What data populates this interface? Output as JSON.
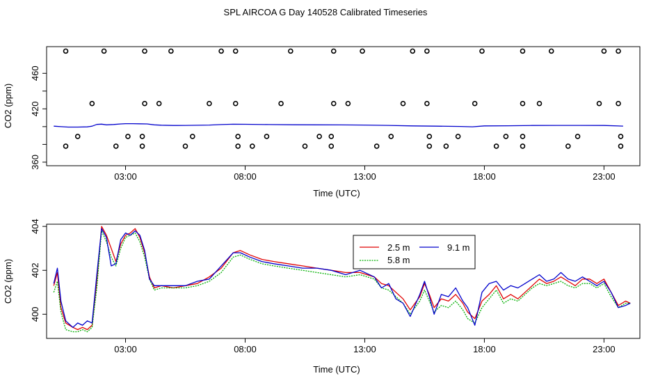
{
  "title": "SPL AIRCOA G  Day 140528  Calibrated Timeseries",
  "chart_data": [
    {
      "type": "line",
      "xlabel": "Time (UTC)",
      "ylabel": "CO2 (ppm)",
      "x_ticks": [
        3,
        8,
        13,
        18,
        23
      ],
      "x_tick_labels": [
        "03:00",
        "08:00",
        "13:00",
        "18:00",
        "23:00"
      ],
      "y_ticks": [
        360,
        380,
        400,
        420,
        440,
        460
      ],
      "y_tick_labels": [
        "360",
        "",
        "",
        "420",
        "",
        "460"
      ],
      "xlim": [
        -0.3,
        24.5
      ],
      "ylim": [
        356,
        490
      ],
      "grid": false,
      "line_color": "#0000cc",
      "series": [
        {
          "x": [
            0,
            0.3,
            0.6,
            1.0,
            1.4,
            1.6,
            1.8,
            2.0,
            2.2,
            2.5,
            2.8,
            3.0,
            3.3,
            3.6,
            3.9,
            4.2,
            4.5,
            5.0,
            5.5,
            6.0,
            6.5,
            7.0,
            7.5,
            8.0,
            9.0,
            10.0,
            11.0,
            12.0,
            13.0,
            14.0,
            15.0,
            16.0,
            17.0,
            17.5,
            18.0,
            19.0,
            20.0,
            21.0,
            22.0,
            23.0,
            23.8
          ],
          "values": [
            400.5,
            400.0,
            399.5,
            399.5,
            399.7,
            400.5,
            402.5,
            402.8,
            402.0,
            402.4,
            403.0,
            403.3,
            403.3,
            403.2,
            403.0,
            402.0,
            401.6,
            401.3,
            401.4,
            401.5,
            401.8,
            402.3,
            402.7,
            402.6,
            402.3,
            402.1,
            402.0,
            401.9,
            401.8,
            401.4,
            400.8,
            400.5,
            400.2,
            399.8,
            400.8,
            401.0,
            401.3,
            401.4,
            401.4,
            401.3,
            400.6
          ]
        }
      ],
      "outliers_x": [
        0.5,
        2.1,
        3.8,
        4.9,
        7.0,
        7.6,
        9.9,
        11.7,
        12.9,
        15.0,
        15.6,
        17.9,
        19.6,
        20.8,
        23.0,
        23.6,
        1.6,
        3.8,
        4.4,
        6.5,
        7.6,
        9.5,
        11.7,
        12.3,
        14.6,
        15.6,
        17.6,
        19.6,
        20.3,
        22.8,
        23.6,
        1.0,
        3.1,
        3.7,
        5.8,
        7.7,
        8.9,
        11.1,
        11.6,
        14.1,
        15.7,
        16.9,
        18.9,
        19.6,
        21.9,
        23.7,
        0.5,
        2.6,
        3.7,
        5.5,
        7.7,
        8.3,
        10.5,
        11.6,
        13.5,
        15.7,
        16.4,
        18.5,
        19.6,
        21.5,
        23.7
      ],
      "outliers_y": [
        485,
        485,
        485,
        485,
        485,
        485,
        485,
        485,
        485,
        485,
        485,
        485,
        485,
        485,
        485,
        485,
        426,
        426,
        426,
        426,
        426,
        426,
        426,
        426,
        426,
        426,
        426,
        426,
        426,
        426,
        426,
        389,
        389,
        389,
        389,
        389,
        389,
        389,
        389,
        389,
        389,
        389,
        389,
        389,
        389,
        389,
        378,
        378,
        378,
        378,
        378,
        378,
        378,
        378,
        378,
        378,
        378,
        378,
        378,
        378,
        378
      ]
    },
    {
      "type": "line",
      "xlabel": "Time (UTC)",
      "ylabel": "CO2 (ppm)",
      "x_ticks": [
        3,
        8,
        13,
        18,
        23
      ],
      "x_tick_labels": [
        "03:00",
        "08:00",
        "13:00",
        "18:00",
        "23:00"
      ],
      "y_ticks": [
        400,
        402,
        404
      ],
      "y_tick_labels": [
        "400",
        "402",
        "404"
      ],
      "xlim": [
        -0.3,
        24.5
      ],
      "ylim": [
        398.9,
        404.1
      ],
      "grid": false,
      "legend_placement": "top-center",
      "series": [
        {
          "name": "2.5 m",
          "color": "#e00000",
          "x": [
            0,
            0.15,
            0.3,
            0.5,
            0.8,
            1.0,
            1.2,
            1.4,
            1.6,
            1.8,
            2.0,
            2.2,
            2.4,
            2.6,
            2.8,
            3.0,
            3.2,
            3.4,
            3.6,
            3.8,
            4.0,
            4.2,
            4.5,
            5.0,
            5.5,
            6.0,
            6.5,
            7.0,
            7.5,
            7.8,
            8.2,
            8.7,
            9.2,
            9.8,
            10.4,
            11.0,
            11.6,
            12.2,
            12.8,
            13.4,
            13.7,
            14.0,
            14.3,
            14.6,
            14.9,
            15.1,
            15.3,
            15.5,
            15.7,
            15.9,
            16.2,
            16.5,
            16.8,
            17.1,
            17.3,
            17.6,
            17.9,
            18.2,
            18.5,
            18.8,
            19.1,
            19.4,
            19.7,
            20.0,
            20.3,
            20.6,
            20.9,
            21.2,
            21.5,
            21.8,
            22.1,
            22.4,
            22.7,
            23.0,
            23.3,
            23.6,
            23.9,
            24.1
          ],
          "values": [
            401.3,
            401.9,
            400.3,
            399.6,
            399.4,
            399.3,
            399.4,
            399.3,
            399.5,
            401.5,
            404.0,
            403.6,
            403.0,
            402.4,
            403.2,
            403.6,
            403.7,
            403.9,
            403.5,
            402.8,
            401.7,
            401.2,
            401.3,
            401.2,
            401.3,
            401.4,
            401.7,
            402.1,
            402.8,
            402.9,
            402.7,
            402.5,
            402.4,
            402.3,
            402.2,
            402.1,
            402.0,
            401.9,
            401.9,
            401.7,
            401.4,
            401.3,
            401.0,
            400.7,
            400.2,
            400.5,
            400.8,
            401.4,
            400.9,
            400.3,
            400.7,
            400.6,
            400.9,
            400.5,
            400.1,
            399.8,
            400.6,
            400.9,
            401.3,
            400.7,
            400.9,
            400.7,
            401.0,
            401.3,
            401.6,
            401.4,
            401.5,
            401.7,
            401.5,
            401.3,
            401.6,
            401.6,
            401.4,
            401.6,
            401.0,
            400.4,
            400.6,
            400.5
          ]
        },
        {
          "name": "5.8 m",
          "color": "#00b000",
          "x": [
            0,
            0.15,
            0.3,
            0.5,
            0.8,
            1.0,
            1.2,
            1.4,
            1.6,
            1.8,
            2.0,
            2.2,
            2.4,
            2.6,
            2.8,
            3.0,
            3.2,
            3.4,
            3.6,
            3.8,
            4.0,
            4.2,
            4.5,
            5.0,
            5.5,
            6.0,
            6.5,
            7.0,
            7.5,
            7.8,
            8.2,
            8.7,
            9.2,
            9.8,
            10.4,
            11.0,
            11.6,
            12.2,
            12.8,
            13.4,
            13.7,
            14.0,
            14.3,
            14.6,
            14.9,
            15.1,
            15.3,
            15.5,
            15.7,
            15.9,
            16.2,
            16.5,
            16.8,
            17.1,
            17.3,
            17.6,
            17.9,
            18.2,
            18.5,
            18.8,
            19.1,
            19.4,
            19.7,
            20.0,
            20.3,
            20.6,
            20.9,
            21.2,
            21.5,
            21.8,
            22.1,
            22.4,
            22.7,
            23.0,
            23.3,
            23.6,
            23.9,
            24.1
          ],
          "values": [
            401.0,
            401.5,
            400.1,
            399.3,
            399.2,
            399.2,
            399.3,
            399.2,
            399.4,
            401.2,
            403.8,
            403.3,
            402.6,
            402.2,
            403.0,
            403.5,
            403.6,
            403.7,
            403.3,
            402.6,
            401.6,
            401.1,
            401.2,
            401.2,
            401.2,
            401.3,
            401.5,
            401.9,
            402.6,
            402.7,
            402.5,
            402.3,
            402.2,
            402.1,
            402.0,
            401.9,
            401.8,
            401.7,
            401.8,
            401.6,
            401.2,
            401.1,
            400.8,
            400.5,
            400.0,
            400.3,
            400.6,
            401.1,
            400.6,
            400.1,
            400.4,
            400.3,
            400.6,
            400.2,
            399.8,
            399.6,
            400.3,
            400.7,
            401.1,
            400.5,
            400.7,
            400.6,
            400.9,
            401.2,
            401.4,
            401.3,
            401.4,
            401.5,
            401.3,
            401.2,
            401.4,
            401.4,
            401.2,
            401.4,
            400.8,
            400.3,
            400.5,
            400.5
          ]
        },
        {
          "name": "9.1 m",
          "color": "#0000cc",
          "x": [
            0,
            0.15,
            0.3,
            0.5,
            0.8,
            1.0,
            1.2,
            1.4,
            1.6,
            1.8,
            2.0,
            2.2,
            2.4,
            2.6,
            2.8,
            3.0,
            3.2,
            3.4,
            3.6,
            3.8,
            4.0,
            4.2,
            4.5,
            5.0,
            5.5,
            6.0,
            6.5,
            7.0,
            7.5,
            7.8,
            8.2,
            8.7,
            9.2,
            9.8,
            10.4,
            11.0,
            11.6,
            12.2,
            12.8,
            13.4,
            13.7,
            14.0,
            14.3,
            14.6,
            14.9,
            15.1,
            15.3,
            15.5,
            15.7,
            15.9,
            16.2,
            16.5,
            16.8,
            17.1,
            17.3,
            17.6,
            17.9,
            18.2,
            18.5,
            18.8,
            19.1,
            19.4,
            19.7,
            20.0,
            20.3,
            20.6,
            20.9,
            21.2,
            21.5,
            21.8,
            22.1,
            22.4,
            22.7,
            23.0,
            23.3,
            23.6,
            23.9,
            24.1
          ],
          "values": [
            401.4,
            402.1,
            400.6,
            399.7,
            399.4,
            399.6,
            399.5,
            399.7,
            399.6,
            401.8,
            403.9,
            403.5,
            402.2,
            402.3,
            403.4,
            403.7,
            403.6,
            403.8,
            403.6,
            402.9,
            401.6,
            401.3,
            401.3,
            401.3,
            401.3,
            401.5,
            401.6,
            402.2,
            402.8,
            402.8,
            402.6,
            402.4,
            402.3,
            402.2,
            402.1,
            402.1,
            402.0,
            401.8,
            402.0,
            401.7,
            401.2,
            401.4,
            400.7,
            400.5,
            399.9,
            400.4,
            400.9,
            401.5,
            400.8,
            400.0,
            400.9,
            400.8,
            401.2,
            400.6,
            400.3,
            399.5,
            401.0,
            401.4,
            401.5,
            401.1,
            401.3,
            401.2,
            401.4,
            401.6,
            401.8,
            401.5,
            401.6,
            401.9,
            401.6,
            401.5,
            401.7,
            401.5,
            401.3,
            401.5,
            401.0,
            400.3,
            400.4,
            400.5
          ]
        }
      ]
    }
  ]
}
